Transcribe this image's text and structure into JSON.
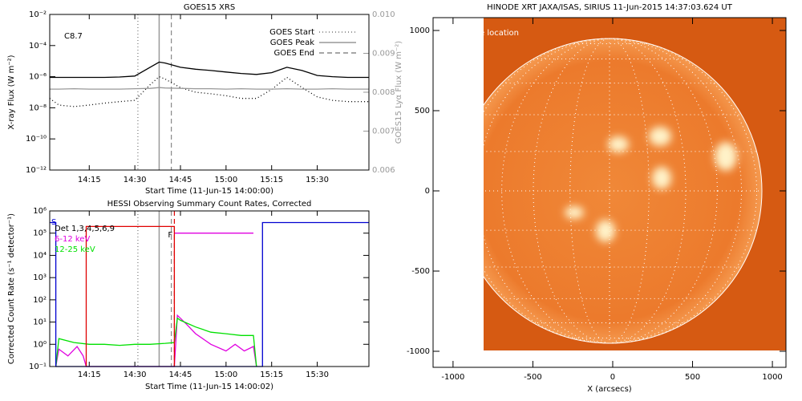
{
  "chart_data": [
    {
      "type": "line",
      "title": "GOES15 XRS",
      "xlabel": "Start Time (11-Jun-15 14:00:00)",
      "ylabel": "X-ray Flux (W m⁻²)",
      "y2label": "GOES15 Lyα Flux (W m⁻²)",
      "annotation": "C8.7",
      "log_y": true,
      "xlim": [
        "14:02",
        "15:47"
      ],
      "xticks": [
        "14:15",
        "14:30",
        "14:45",
        "15:00",
        "15:15",
        "15:30"
      ],
      "ylim": [
        1e-12,
        0.01
      ],
      "yticks": [
        {
          "value": 0.01,
          "label": "10⁻²"
        },
        {
          "value": 0.0001,
          "label": "10⁻⁴"
        },
        {
          "value": 1e-06,
          "label": "10⁻⁶"
        },
        {
          "value": 1e-08,
          "label": "10⁻⁸"
        },
        {
          "value": 1e-10,
          "label": "10⁻¹⁰"
        },
        {
          "value": 1e-12,
          "label": "10⁻¹²"
        }
      ],
      "y2lim": [
        0.006,
        0.01
      ],
      "y2ticks": [
        0.006,
        0.007,
        0.008,
        0.009,
        {
          "value": 0.01,
          "label": "0.010"
        }
      ],
      "x": [
        "14:02",
        "14:05",
        "14:10",
        "14:15",
        "14:20",
        "14:25",
        "14:30",
        "14:35",
        "14:38",
        "14:40",
        "14:45",
        "14:50",
        "14:55",
        "15:00",
        "15:05",
        "15:10",
        "15:15",
        "15:20",
        "15:25",
        "15:30",
        "15:35",
        "15:40",
        "15:47"
      ],
      "series": [
        {
          "color": "#000000",
          "style": "solid",
          "values": [
            9e-07,
            9e-07,
            9e-07,
            9e-07,
            9e-07,
            9.5e-07,
            1.1e-06,
            4e-06,
            8.7e-06,
            7.5e-06,
            4e-06,
            3e-06,
            2.5e-06,
            2e-06,
            1.6e-06,
            1.4e-06,
            1.8e-06,
            4e-06,
            2.5e-06,
            1.2e-06,
            1e-06,
            9e-07,
            9e-07
          ]
        },
        {
          "color": "#000000",
          "style": "dotted",
          "values": [
            4e-08,
            1.5e-08,
            1.2e-08,
            1.5e-08,
            2e-08,
            2.5e-08,
            3e-08,
            3e-07,
            1e-06,
            7e-07,
            2e-07,
            1e-07,
            8e-08,
            6e-08,
            4e-08,
            4e-08,
            1.5e-07,
            9e-07,
            2e-07,
            5e-08,
            3e-08,
            2.5e-08,
            2.5e-08
          ]
        },
        {
          "color": "#999999",
          "style": "solid",
          "axis": "y2",
          "values": [
            0.00808,
            0.00808,
            0.00809,
            0.00808,
            0.00808,
            0.00808,
            0.00809,
            0.0081,
            0.00812,
            0.00811,
            0.0081,
            0.00809,
            0.00809,
            0.00808,
            0.00809,
            0.00808,
            0.00808,
            0.00809,
            0.00808,
            0.00808,
            0.00809,
            0.00808,
            0.00808
          ]
        }
      ],
      "markers": [
        {
          "name": "GOES Start",
          "x": "14:31",
          "style": "dotted",
          "color": "#777777"
        },
        {
          "name": "GOES Peak",
          "x": "14:38",
          "style": "solid",
          "color": "#999999"
        },
        {
          "name": "GOES End",
          "x": "14:42",
          "style": "dashed",
          "color": "#888888"
        }
      ],
      "legend": "upper right"
    },
    {
      "type": "line",
      "title": "HESSI Observing Summary Count Rates, Corrected",
      "xlabel": "Start Time (11-Jun-15 14:00:02)",
      "ylabel": "Corrected Count Rate (s⁻¹ detector⁻¹)",
      "legend_title": "Det 1,3,4,5,6,9",
      "flag_labels": [
        "S",
        "F"
      ],
      "log_y": true,
      "xlim": [
        "14:02",
        "15:47"
      ],
      "xticks": [
        "14:15",
        "14:30",
        "14:45",
        "15:00",
        "15:15",
        "15:30"
      ],
      "ylim": [
        0.1,
        1000000
      ],
      "yticks": [
        {
          "value": 0.1,
          "label": "10⁻¹"
        },
        {
          "value": 1,
          "label": "10⁰"
        },
        {
          "value": 10,
          "label": "10¹"
        },
        {
          "value": 100,
          "label": "10²"
        },
        {
          "value": 1000,
          "label": "10³"
        },
        {
          "value": 10000,
          "label": "10⁴"
        },
        {
          "value": 100000,
          "label": "10⁵"
        },
        {
          "value": 1000000,
          "label": "10⁶"
        }
      ],
      "series": [
        {
          "name": "6-12 keV",
          "color": "#e000e0",
          "x": [
            "14:04",
            "14:05",
            "14:08",
            "14:11",
            "14:13",
            "14:14",
            "14:43",
            "14:44",
            "14:47",
            "14:50",
            "14:55",
            "15:00",
            "15:03",
            "15:06",
            "15:09",
            "15:10"
          ],
          "values": [
            0.1,
            0.6,
            0.3,
            0.8,
            0.3,
            0.1,
            0.1,
            20,
            8,
            3,
            1,
            0.5,
            1,
            0.5,
            0.8,
            0.1
          ]
        },
        {
          "name": "12-25 keV",
          "color": "#00e000",
          "x": [
            "14:04",
            "14:05",
            "14:10",
            "14:15",
            "14:20",
            "14:25",
            "14:30",
            "14:35",
            "14:40",
            "14:43",
            "14:44",
            "14:45",
            "14:50",
            "14:55",
            "15:00",
            "15:05",
            "15:09",
            "15:10"
          ],
          "values": [
            0.1,
            1.8,
            1.2,
            1,
            1,
            0.9,
            1,
            1,
            1.1,
            1.2,
            15,
            12,
            6,
            3.5,
            3,
            2.5,
            2.5,
            0.1
          ]
        },
        {
          "color": "#e000e0",
          "x": [
            "14:43",
            "15:09"
          ],
          "values": [
            100000,
            100000
          ]
        },
        {
          "color": "#e00000",
          "x": [
            "14:14",
            "14:14",
            "14:43",
            "14:43"
          ],
          "values": [
            0.1,
            200000,
            200000,
            0.1
          ]
        },
        {
          "color": "#0000d0",
          "x": [
            "14:02",
            "14:04",
            "14:04",
            "15:12",
            "15:12",
            "15:47"
          ],
          "values": [
            300000,
            300000,
            0.1,
            0.1,
            300000,
            300000
          ]
        }
      ],
      "markers": [
        {
          "x": "14:31",
          "style": "dotted",
          "color": "#777777"
        },
        {
          "x": "14:38",
          "style": "solid",
          "color": "#999999"
        },
        {
          "x": "14:42",
          "style": "dashed",
          "color": "#888888"
        },
        {
          "x": "14:43",
          "style": "dashed",
          "color": "#e00000"
        }
      ]
    },
    {
      "type": "image",
      "title": "HINODE XRT JAXA/ISAS, SIRIUS 11-Jun-2015 14:37:03.624 UT",
      "xlabel": "X (arcsecs)",
      "annotation": "e location",
      "xlim": [
        -1125,
        1085
      ],
      "ylim": [
        -1100,
        1080
      ],
      "xticks": [
        -1000,
        -500,
        0,
        500,
        1000
      ],
      "yticks": [
        -1000,
        -500,
        0,
        500,
        1000
      ]
    }
  ]
}
